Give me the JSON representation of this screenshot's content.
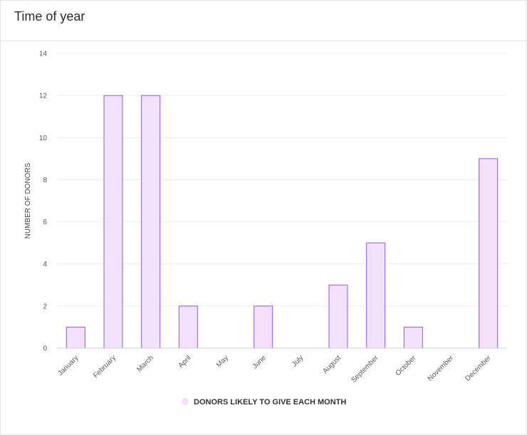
{
  "card": {
    "title": "Time of year"
  },
  "chart_data": {
    "type": "bar",
    "title": "",
    "xlabel": "",
    "ylabel": "NUMBER OF DONORS",
    "categories": [
      "January",
      "February",
      "March",
      "April",
      "May",
      "June",
      "July",
      "August",
      "September",
      "October",
      "November",
      "December"
    ],
    "series": [
      {
        "name": "DONORS LIKELY TO GIVE EACH MONTH",
        "values": [
          1,
          12,
          12,
          2,
          0,
          2,
          0,
          3,
          5,
          1,
          0,
          9
        ]
      }
    ],
    "ylim": [
      0,
      14
    ],
    "yticks": [
      0,
      2,
      4,
      6,
      8,
      10,
      12,
      14
    ],
    "grid": true,
    "legend_position": "bottom-center",
    "colors": {
      "bar_fill": "#f3e1fb",
      "bar_stroke": "#8f59d9",
      "grid": "#ececec",
      "axis": "#cfcfcf"
    }
  }
}
